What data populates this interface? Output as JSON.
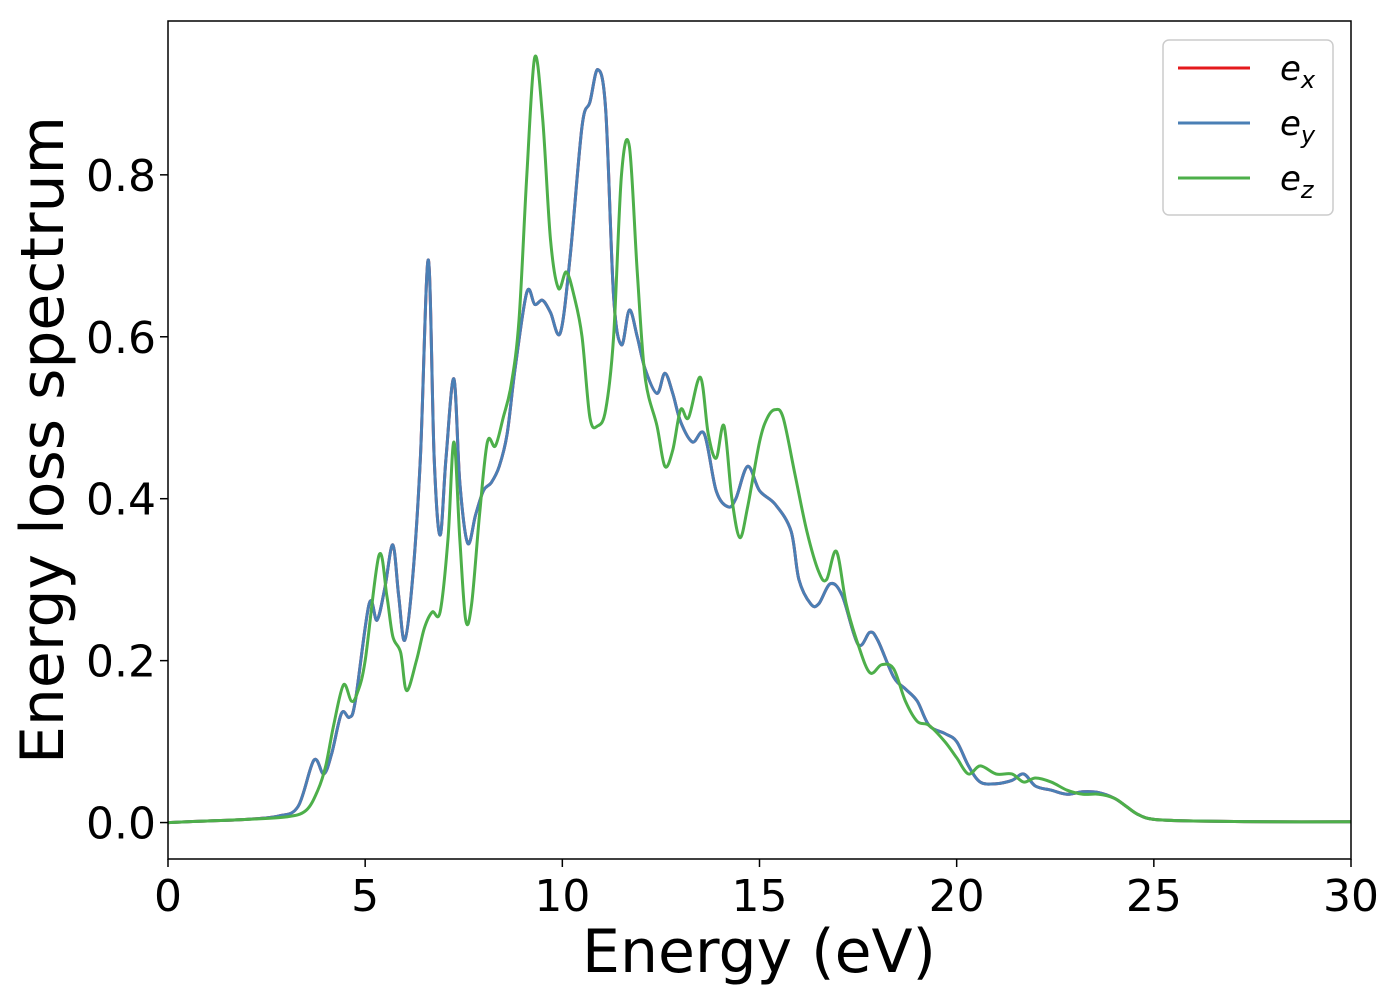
{
  "chart_data": {
    "type": "line",
    "title": "",
    "xlabel": "Energy (eV)",
    "ylabel": "Energy loss spectrum",
    "xlim": [
      0,
      30
    ],
    "ylim": [
      -0.045,
      0.99
    ],
    "xticks": [
      0,
      5,
      10,
      15,
      20,
      25,
      30
    ],
    "xtick_labels": [
      "0",
      "5",
      "10",
      "15",
      "20",
      "25",
      "30"
    ],
    "yticks": [
      0.0,
      0.2,
      0.4,
      0.6,
      0.8
    ],
    "ytick_labels": [
      "0.0",
      "0.2",
      "0.4",
      "0.6",
      "0.8"
    ],
    "grid": false,
    "legend_position": "top-right",
    "series": [
      {
        "name": "e_x",
        "label_base": "e",
        "label_sub": "x",
        "color": "#e41a1c",
        "x": [
          0,
          1,
          2,
          2.8,
          3.3,
          3.7,
          3.95,
          4.15,
          4.4,
          4.6,
          4.75,
          5.1,
          5.3,
          5.5,
          5.7,
          5.85,
          6.0,
          6.2,
          6.4,
          6.6,
          6.75,
          6.9,
          7.05,
          7.25,
          7.4,
          7.6,
          7.8,
          8.0,
          8.2,
          8.4,
          8.6,
          8.8,
          9.1,
          9.3,
          9.5,
          9.7,
          9.95,
          10.2,
          10.5,
          10.7,
          10.9,
          11.1,
          11.3,
          11.5,
          11.7,
          11.9,
          12.1,
          12.4,
          12.6,
          12.8,
          13.0,
          13.3,
          13.6,
          13.9,
          14.2,
          14.4,
          14.7,
          15.0,
          15.4,
          15.8,
          16.0,
          16.3,
          16.5,
          16.8,
          17.1,
          17.5,
          17.8,
          18.0,
          18.4,
          18.7,
          19.0,
          19.3,
          19.7,
          20.0,
          20.3,
          20.6,
          21.0,
          21.4,
          21.7,
          22.0,
          22.4,
          22.8,
          23.2,
          23.6,
          24.0,
          24.3,
          24.6,
          25.0,
          26,
          28,
          30
        ],
        "y": [
          0,
          0.002,
          0.004,
          0.008,
          0.02,
          0.077,
          0.06,
          0.085,
          0.135,
          0.13,
          0.15,
          0.27,
          0.25,
          0.29,
          0.343,
          0.28,
          0.225,
          0.3,
          0.45,
          0.695,
          0.45,
          0.355,
          0.45,
          0.548,
          0.42,
          0.345,
          0.38,
          0.41,
          0.42,
          0.44,
          0.48,
          0.56,
          0.655,
          0.64,
          0.645,
          0.63,
          0.605,
          0.7,
          0.86,
          0.89,
          0.93,
          0.88,
          0.65,
          0.59,
          0.633,
          0.6,
          0.56,
          0.53,
          0.555,
          0.53,
          0.495,
          0.47,
          0.48,
          0.41,
          0.39,
          0.4,
          0.44,
          0.41,
          0.393,
          0.36,
          0.3,
          0.27,
          0.27,
          0.295,
          0.28,
          0.22,
          0.235,
          0.225,
          0.18,
          0.165,
          0.15,
          0.12,
          0.11,
          0.1,
          0.07,
          0.05,
          0.048,
          0.052,
          0.06,
          0.045,
          0.04,
          0.035,
          0.038,
          0.037,
          0.03,
          0.02,
          0.01,
          0.004,
          0.002,
          0.001,
          0.001
        ]
      },
      {
        "name": "e_y",
        "label_base": "e",
        "label_sub": "y",
        "color": "#4a7fb5",
        "x": [
          0,
          1,
          2,
          2.8,
          3.3,
          3.7,
          3.95,
          4.15,
          4.4,
          4.6,
          4.75,
          5.1,
          5.3,
          5.5,
          5.7,
          5.85,
          6.0,
          6.2,
          6.4,
          6.6,
          6.75,
          6.9,
          7.05,
          7.25,
          7.4,
          7.6,
          7.8,
          8.0,
          8.2,
          8.4,
          8.6,
          8.8,
          9.1,
          9.3,
          9.5,
          9.7,
          9.95,
          10.2,
          10.5,
          10.7,
          10.9,
          11.1,
          11.3,
          11.5,
          11.7,
          11.9,
          12.1,
          12.4,
          12.6,
          12.8,
          13.0,
          13.3,
          13.6,
          13.9,
          14.2,
          14.4,
          14.7,
          15.0,
          15.4,
          15.8,
          16.0,
          16.3,
          16.5,
          16.8,
          17.1,
          17.5,
          17.8,
          18.0,
          18.4,
          18.7,
          19.0,
          19.3,
          19.7,
          20.0,
          20.3,
          20.6,
          21.0,
          21.4,
          21.7,
          22.0,
          22.4,
          22.8,
          23.2,
          23.6,
          24.0,
          24.3,
          24.6,
          25.0,
          26,
          28,
          30
        ],
        "y": [
          0,
          0.002,
          0.004,
          0.008,
          0.02,
          0.077,
          0.06,
          0.085,
          0.135,
          0.13,
          0.15,
          0.27,
          0.25,
          0.29,
          0.343,
          0.28,
          0.225,
          0.3,
          0.45,
          0.695,
          0.45,
          0.355,
          0.45,
          0.548,
          0.42,
          0.345,
          0.38,
          0.41,
          0.42,
          0.44,
          0.48,
          0.56,
          0.655,
          0.64,
          0.645,
          0.63,
          0.605,
          0.7,
          0.86,
          0.89,
          0.93,
          0.88,
          0.65,
          0.59,
          0.633,
          0.6,
          0.56,
          0.53,
          0.555,
          0.53,
          0.495,
          0.47,
          0.48,
          0.41,
          0.39,
          0.4,
          0.44,
          0.41,
          0.393,
          0.36,
          0.3,
          0.27,
          0.27,
          0.295,
          0.28,
          0.22,
          0.235,
          0.225,
          0.18,
          0.165,
          0.15,
          0.12,
          0.11,
          0.1,
          0.07,
          0.05,
          0.048,
          0.052,
          0.06,
          0.045,
          0.04,
          0.035,
          0.038,
          0.037,
          0.03,
          0.02,
          0.01,
          0.004,
          0.002,
          0.001,
          0.001
        ]
      },
      {
        "name": "e_z",
        "label_base": "e",
        "label_sub": "z",
        "color": "#4daf4a",
        "x": [
          0,
          1,
          2,
          3.0,
          3.5,
          3.8,
          4.0,
          4.2,
          4.45,
          4.65,
          4.8,
          5.0,
          5.35,
          5.55,
          5.7,
          5.9,
          6.05,
          6.3,
          6.5,
          6.7,
          6.9,
          7.1,
          7.25,
          7.4,
          7.55,
          7.7,
          7.9,
          8.1,
          8.3,
          8.5,
          8.7,
          8.9,
          9.1,
          9.3,
          9.5,
          9.7,
          9.9,
          10.1,
          10.3,
          10.5,
          10.7,
          10.9,
          11.1,
          11.3,
          11.5,
          11.7,
          11.9,
          12.1,
          12.4,
          12.6,
          12.8,
          13.0,
          13.2,
          13.5,
          13.7,
          13.9,
          14.1,
          14.3,
          14.5,
          14.7,
          15.0,
          15.2,
          15.4,
          15.6,
          15.9,
          16.2,
          16.5,
          16.7,
          16.95,
          17.2,
          17.5,
          17.8,
          18.1,
          18.4,
          18.7,
          19.0,
          19.3,
          19.7,
          20.0,
          20.3,
          20.6,
          21.0,
          21.4,
          21.7,
          22.0,
          22.4,
          22.8,
          23.2,
          23.6,
          24.0,
          24.3,
          24.6,
          25.0,
          26,
          28,
          30
        ],
        "y": [
          0,
          0.002,
          0.004,
          0.007,
          0.015,
          0.04,
          0.07,
          0.12,
          0.17,
          0.15,
          0.16,
          0.2,
          0.33,
          0.28,
          0.23,
          0.21,
          0.163,
          0.2,
          0.24,
          0.26,
          0.26,
          0.35,
          0.47,
          0.35,
          0.25,
          0.27,
          0.38,
          0.47,
          0.465,
          0.5,
          0.54,
          0.62,
          0.8,
          0.945,
          0.87,
          0.72,
          0.66,
          0.68,
          0.65,
          0.6,
          0.5,
          0.49,
          0.51,
          0.6,
          0.8,
          0.835,
          0.68,
          0.55,
          0.49,
          0.44,
          0.46,
          0.51,
          0.5,
          0.55,
          0.48,
          0.45,
          0.49,
          0.4,
          0.352,
          0.39,
          0.47,
          0.5,
          0.51,
          0.5,
          0.43,
          0.36,
          0.31,
          0.3,
          0.335,
          0.27,
          0.22,
          0.185,
          0.195,
          0.19,
          0.15,
          0.125,
          0.12,
          0.1,
          0.08,
          0.06,
          0.07,
          0.06,
          0.06,
          0.05,
          0.055,
          0.05,
          0.04,
          0.035,
          0.035,
          0.03,
          0.02,
          0.01,
          0.004,
          0.002,
          0.001,
          0.001
        ]
      }
    ]
  }
}
